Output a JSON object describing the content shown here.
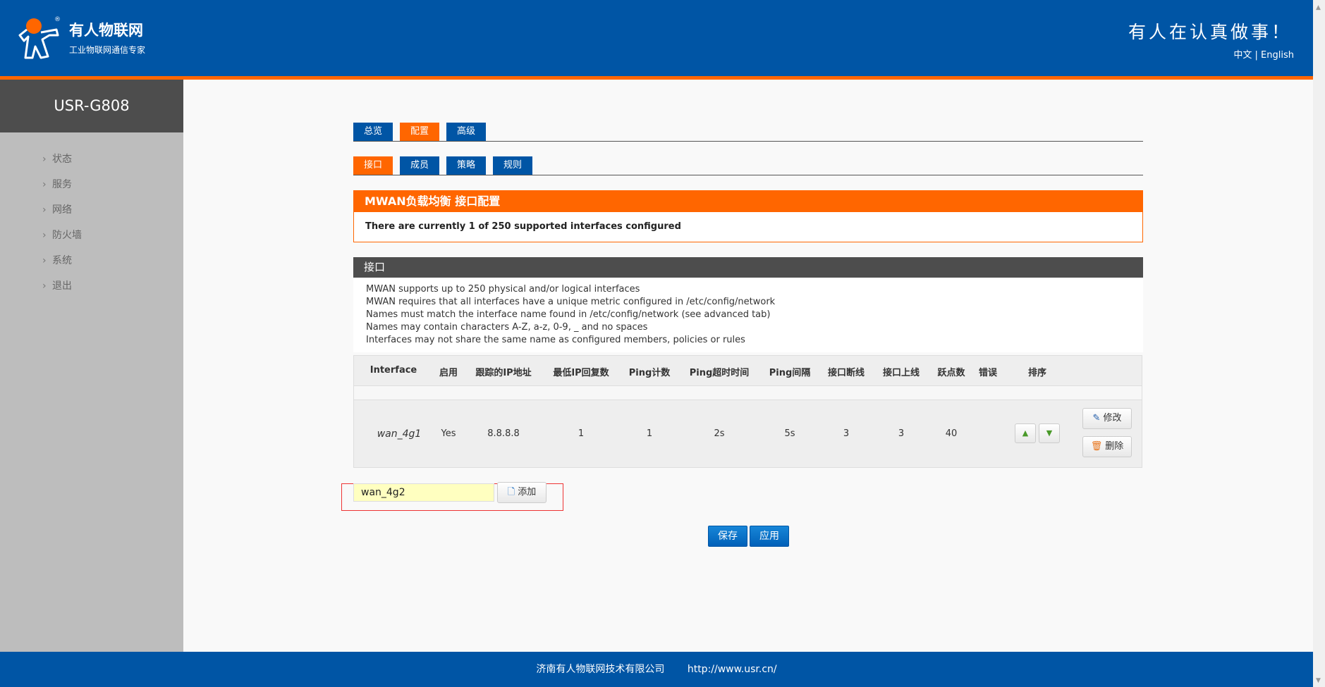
{
  "header": {
    "brand": "有人物联网",
    "brand_sub": "工业物联网通信专家",
    "slogan": "有人在认真做事！",
    "lang_zh": "中文",
    "lang_sep": "|",
    "lang_en": "English",
    "colors": {
      "header": "#0055a5",
      "accent": "#ff6600"
    }
  },
  "sidebar": {
    "device": "USR-G808",
    "items": [
      {
        "label": "状态"
      },
      {
        "label": "服务"
      },
      {
        "label": "网络"
      },
      {
        "label": "防火墙"
      },
      {
        "label": "系统"
      },
      {
        "label": "退出"
      }
    ]
  },
  "tabs_main": [
    {
      "label": "总览"
    },
    {
      "label": "配置",
      "active": true
    },
    {
      "label": "高级"
    }
  ],
  "tabs_sub": [
    {
      "label": "接口",
      "active": true
    },
    {
      "label": "成员"
    },
    {
      "label": "策略"
    },
    {
      "label": "规则"
    }
  ],
  "notice": {
    "title": "MWAN负载均衡 接口配置",
    "message": "There are currently 1 of 250 supported interfaces configured"
  },
  "section": {
    "title": "接口",
    "lines": [
      "MWAN supports up to 250 physical and/or logical interfaces",
      "MWAN requires that all interfaces have a unique metric configured in /etc/config/network",
      "Names must match the interface name found in /etc/config/network (see advanced tab)",
      "Names may contain characters A-Z, a-z, 0-9, _ and no spaces",
      "Interfaces may not share the same name as configured members, policies or rules"
    ]
  },
  "table": {
    "headers": [
      "Interface",
      "启用",
      "跟踪的IP地址",
      "最低IP回复数",
      "Ping计数",
      "Ping超时时间",
      "Ping间隔",
      "接口断线",
      "接口上线",
      "跃点数",
      "错误",
      "排序"
    ],
    "rows": [
      {
        "cells": [
          "wan_4g1",
          "Yes",
          "8.8.8.8",
          "1",
          "1",
          "2s",
          "5s",
          "3",
          "3",
          "40",
          ""
        ]
      }
    ],
    "edit_label": "修改",
    "delete_label": "删除"
  },
  "add": {
    "value": "wan_4g2",
    "button": "添加"
  },
  "actions": {
    "save": "保存",
    "apply": "应用"
  },
  "footer": {
    "company": "济南有人物联网技术有限公司",
    "url": "http://www.usr.cn/"
  }
}
